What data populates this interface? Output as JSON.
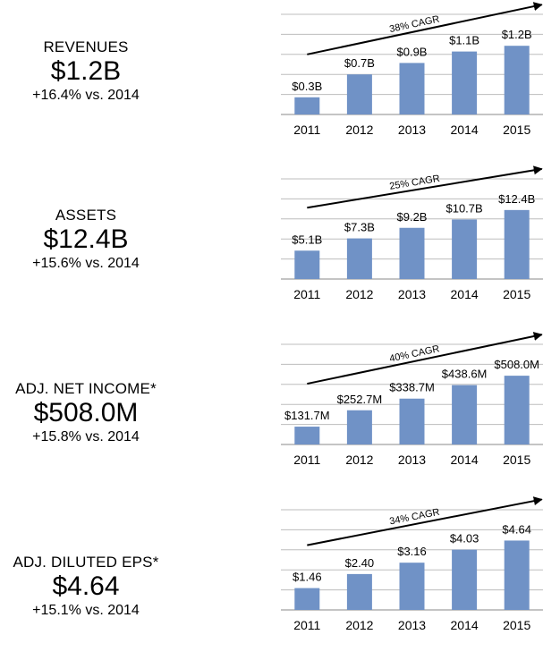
{
  "panels": [
    {
      "label": "REVENUES",
      "value": "$1.2B",
      "delta": "+16.4% vs. 2014",
      "chart_data": {
        "type": "bar",
        "categories": [
          "2011",
          "2012",
          "2013",
          "2014",
          "2015"
        ],
        "values": [
          0.3,
          0.7,
          0.9,
          1.1,
          1.2
        ],
        "data_labels": [
          "$0.3B",
          "$0.7B",
          "$0.9B",
          "$1.1B",
          "$1.2B"
        ],
        "annotation": "38% CAGR",
        "ylim": [
          0,
          1.75
        ],
        "grid": true,
        "bar_color": "#7092c6"
      }
    },
    {
      "label": "ASSETS",
      "value": "$12.4B",
      "delta": "+15.6% vs. 2014",
      "chart_data": {
        "type": "bar",
        "categories": [
          "2011",
          "2012",
          "2013",
          "2014",
          "2015"
        ],
        "values": [
          5.1,
          7.3,
          9.2,
          10.7,
          12.4
        ],
        "data_labels": [
          "$5.1B",
          "$7.3B",
          "$9.2B",
          "$10.7B",
          "$12.4B"
        ],
        "annotation": "25% CAGR",
        "ylim": [
          0,
          18
        ],
        "grid": true,
        "bar_color": "#7092c6"
      }
    },
    {
      "label": "ADJ. NET INCOME*",
      "value": "$508.0M",
      "delta": "+15.8% vs. 2014",
      "chart_data": {
        "type": "bar",
        "categories": [
          "2011",
          "2012",
          "2013",
          "2014",
          "2015"
        ],
        "values": [
          131.7,
          252.7,
          338.7,
          438.6,
          508.0
        ],
        "data_labels": [
          "$131.7M",
          "$252.7M",
          "$338.7M",
          "$438.6M",
          "$508.0M"
        ],
        "annotation": "40% CAGR",
        "ylim": [
          0,
          740
        ],
        "grid": true,
        "bar_color": "#7092c6"
      }
    },
    {
      "label": "ADJ. DILUTED EPS*",
      "value": "$4.64",
      "delta": "+15.1% vs. 2014",
      "chart_data": {
        "type": "bar",
        "categories": [
          "2011",
          "2012",
          "2013",
          "2014",
          "2015"
        ],
        "values": [
          1.46,
          2.4,
          3.16,
          4.03,
          4.64
        ],
        "data_labels": [
          "$1.46",
          "$2.40",
          "$3.16",
          "$4.03",
          "$4.64"
        ],
        "annotation": "34% CAGR",
        "ylim": [
          0,
          6.7
        ],
        "grid": true,
        "bar_color": "#7092c6"
      }
    }
  ]
}
